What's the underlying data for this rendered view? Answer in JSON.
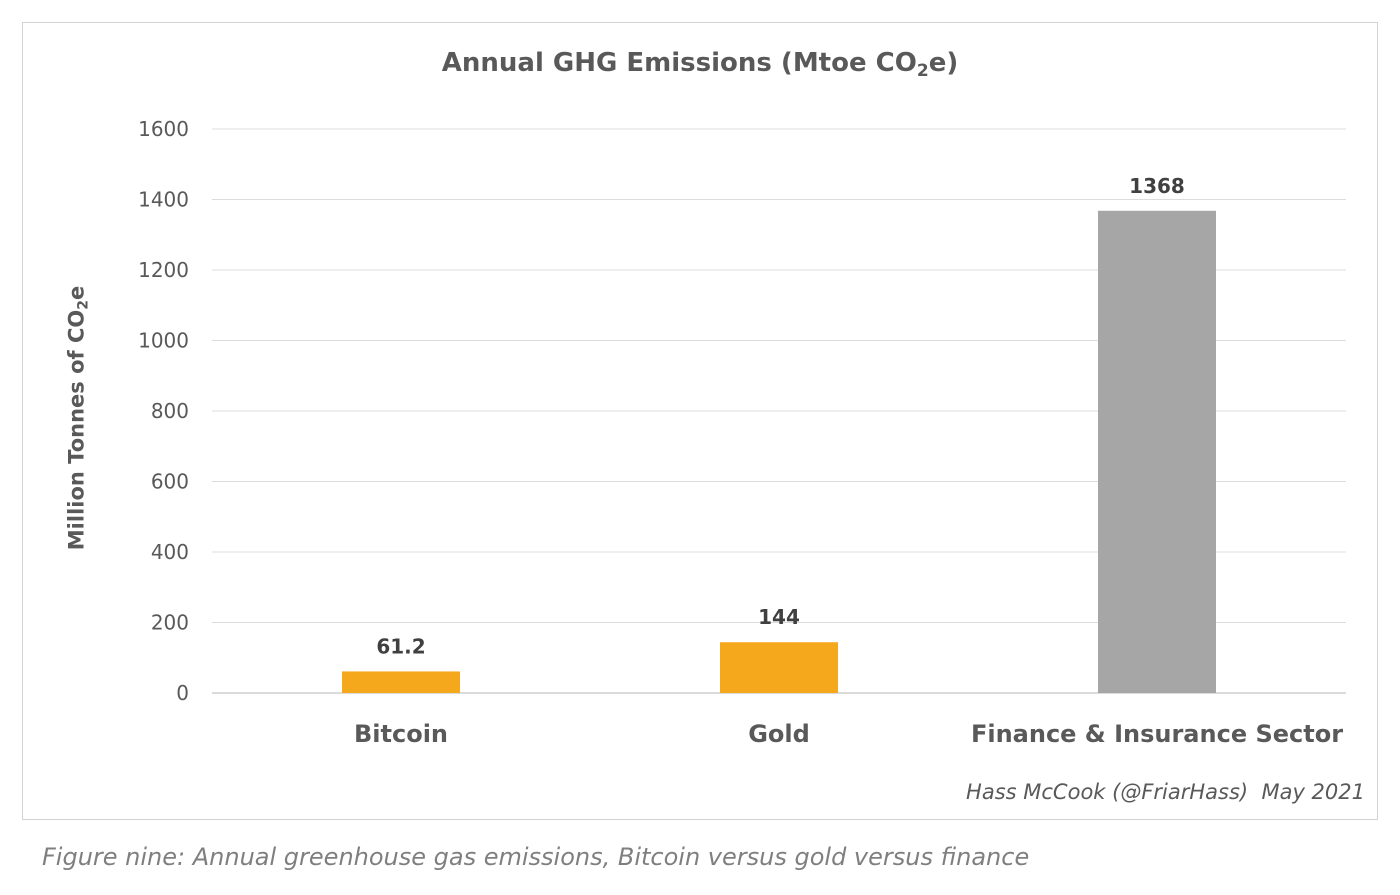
{
  "chart_data": {
    "type": "bar",
    "title": {
      "main": "Annual GHG Emissions (Mtoe CO",
      "sub": "2",
      "tail": "e)"
    },
    "ylabel": {
      "main": "Million Tonnes of CO",
      "sub": "2",
      "tail": "e"
    },
    "xlabel": "",
    "categories": [
      "Bitcoin",
      "Gold",
      "Finance & Insurance Sector"
    ],
    "values": [
      61.2,
      144,
      1368
    ],
    "data_labels": [
      "61.2",
      "144",
      "1368"
    ],
    "colors": [
      "#f5a81c",
      "#f5a81c",
      "#a6a6a6"
    ],
    "ylim": [
      0,
      1600
    ],
    "yticks": [
      0,
      200,
      400,
      600,
      800,
      1000,
      1200,
      1400,
      1600
    ],
    "grid": true,
    "legend": "none"
  },
  "credit": "Hass McCook (@FriarHass)  May 2021",
  "caption": "Figure nine: Annual greenhouse gas emissions, Bitcoin versus gold versus finance"
}
